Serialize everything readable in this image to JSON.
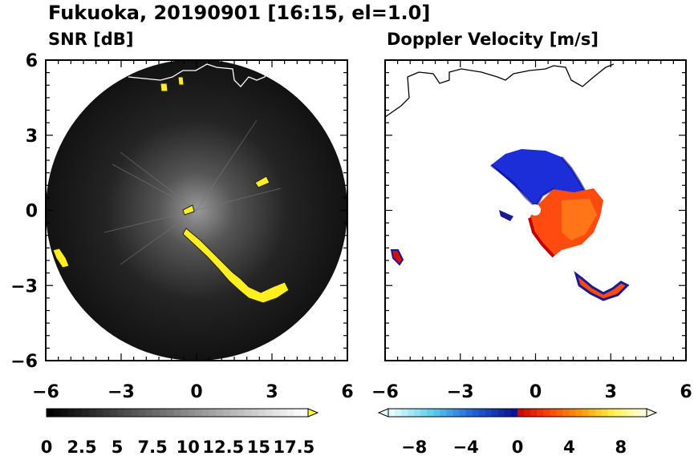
{
  "title": "Fukuoka, 20190901 [16:15, el=1.0]",
  "chart_data": [
    {
      "type": "heatmap",
      "title": "SNR [dB]",
      "xlim": [
        -6,
        6
      ],
      "ylim": [
        -6,
        6
      ],
      "x_ticks": [
        -6,
        -3,
        0,
        3,
        6
      ],
      "y_ticks": [
        6,
        3,
        0,
        -3,
        -6
      ],
      "x_tick_labels": [
        "−6",
        "−3",
        "0",
        "3",
        "6"
      ],
      "y_tick_labels": [
        "6",
        "3",
        "0",
        "−3",
        "−6"
      ],
      "grid": false,
      "scan_radius": 6,
      "colorbar": {
        "range": [
          0,
          18.5
        ],
        "colors": [
          "#000000",
          "#ffffff"
        ],
        "over_color": "#ffff33",
        "tick_labels": [
          "0",
          "2.5",
          "5",
          "7.5",
          "10",
          "12.5",
          "15",
          "17.5"
        ]
      }
    },
    {
      "type": "heatmap",
      "title": "Doppler Velocity [m/s]",
      "xlim": [
        -6,
        6
      ],
      "ylim": [
        -6,
        6
      ],
      "x_ticks": [
        -6,
        -3,
        0,
        3,
        6
      ],
      "x_tick_labels": [
        "−6",
        "−3",
        "0",
        "3",
        "6"
      ],
      "grid": false,
      "colorbar": {
        "range": [
          -10,
          10
        ],
        "colors": [
          "#e6ffff",
          "#55ccee",
          "#1e5bd8",
          "#0a0a8c",
          "#cc0000",
          "#ff4400",
          "#ff9900",
          "#ffee44",
          "#ffffe0"
        ],
        "tick_labels": [
          "−8",
          "−4",
          "0",
          "4",
          "8"
        ]
      }
    }
  ]
}
